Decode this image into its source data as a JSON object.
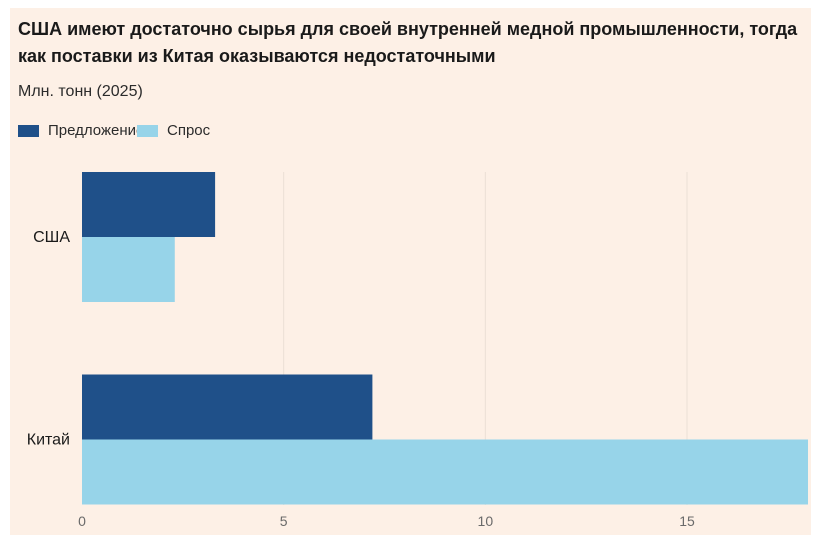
{
  "title": "США имеют достаточно сырья для своей внутренней медной промышленности, тогда как поставки из Китая оказываются недостаточными",
  "subtitle": "Млн. тонн (2025)",
  "colors": {
    "background": "#fdf0e6",
    "supply": "#1f5089",
    "demand": "#97d4e9",
    "grid": "#ecdfd5",
    "axis_text": "#6a6a6a"
  },
  "chart_data": {
    "type": "bar",
    "orientation": "horizontal",
    "categories": [
      "США",
      "Китай"
    ],
    "series": [
      {
        "name": "Предложение",
        "values": [
          3.3,
          7.2
        ]
      },
      {
        "name": "Спрос",
        "values": [
          2.3,
          18.0
        ]
      }
    ],
    "xlim": [
      0,
      18
    ],
    "xticks": [
      0,
      5,
      10,
      15
    ],
    "grid": true,
    "legend": "top-left"
  },
  "legend": [
    {
      "label": "Предложение"
    },
    {
      "label": "Спрос"
    }
  ]
}
